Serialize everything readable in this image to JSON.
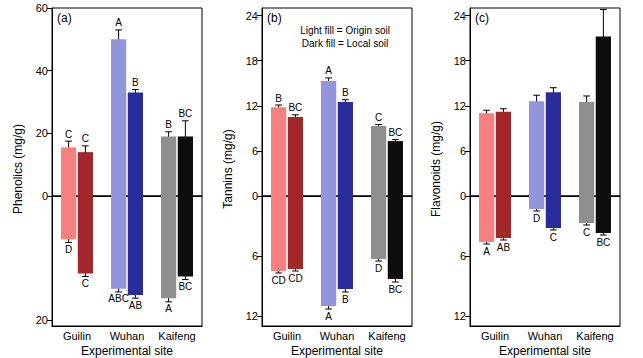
{
  "chart_data": [
    {
      "type": "bar",
      "title": "(a)",
      "ylabel": "Phenolics (mg/g)",
      "xlabel": "Experimental site",
      "categories": [
        "Guilin",
        "Wuhan",
        "Kaifeng"
      ],
      "grid": false,
      "ylim": [
        0,
        60
      ],
      "yticks": [
        0,
        20,
        40,
        60
      ],
      "y2lim": [
        0,
        21
      ],
      "y2ticks": [
        20
      ],
      "series": [
        {
          "colors": [
            "#f4817f",
            "#9395dc",
            "#8f8f8f"
          ],
          "values": [
            15.5,
            50,
            19
          ],
          "errors": [
            2,
            3,
            1.5
          ],
          "letters": [
            "C",
            "A",
            "B"
          ]
        },
        {
          "colors": [
            "#a3262a",
            "#2a2c9a",
            "#0d0d0d"
          ],
          "values": [
            14,
            33,
            19
          ],
          "errors": [
            2,
            1,
            5
          ],
          "letters": [
            "C",
            "B",
            "BC"
          ]
        },
        {
          "axis": "y2",
          "colors": [
            "#f4817f",
            "#9395dc",
            "#8f8f8f"
          ],
          "values": [
            7,
            15,
            16.5
          ],
          "errors": [
            0.5,
            0.5,
            0.6
          ],
          "letters": [
            "D",
            "ABC",
            "A"
          ]
        },
        {
          "axis": "y2",
          "colors": [
            "#a3262a",
            "#2a2c9a",
            "#0d0d0d"
          ],
          "values": [
            12.5,
            16,
            13
          ],
          "errors": [
            0.5,
            0.5,
            0.5
          ],
          "letters": [
            "C",
            "AB",
            "BC"
          ]
        }
      ]
    },
    {
      "type": "bar",
      "title": "(b)",
      "ylabel": "Tannins (mg/g)",
      "xlabel": "Experimental site",
      "annotations": [
        "Light fill = Origin soil",
        "Dark fill = Local soil"
      ],
      "categories": [
        "Guilin",
        "Wuhan",
        "Kaifeng"
      ],
      "grid": false,
      "ylim": [
        0,
        25
      ],
      "yticks": [
        0,
        6,
        12,
        18,
        24
      ],
      "y2lim": [
        0,
        13
      ],
      "y2ticks": [
        6,
        12
      ],
      "series": [
        {
          "colors": [
            "#f4817f",
            "#9395dc",
            "#8f8f8f"
          ],
          "values": [
            11.8,
            15.3,
            9.3
          ],
          "errors": [
            0.3,
            0.4,
            0.2
          ],
          "letters": [
            "B",
            "A",
            "C"
          ]
        },
        {
          "colors": [
            "#a3262a",
            "#2a2c9a",
            "#0d0d0d"
          ],
          "values": [
            10.5,
            12.5,
            7.3
          ],
          "errors": [
            0.3,
            0.3,
            0.2
          ],
          "letters": [
            "BC",
            "B",
            "BC"
          ]
        },
        {
          "axis": "y2",
          "colors": [
            "#f4817f",
            "#9395dc",
            "#8f8f8f"
          ],
          "values": [
            7.5,
            11,
            6.3
          ],
          "errors": [
            0.2,
            0.3,
            0.2
          ],
          "letters": [
            "CD",
            "A",
            "D"
          ]
        },
        {
          "axis": "y2",
          "colors": [
            "#a3262a",
            "#2a2c9a",
            "#0d0d0d"
          ],
          "values": [
            7.3,
            9.3,
            8.3
          ],
          "errors": [
            0.2,
            0.3,
            0.3
          ],
          "letters": [
            "CD",
            "B",
            "BC"
          ]
        }
      ]
    },
    {
      "type": "bar",
      "title": "(c)",
      "ylabel": "Flavonoids (mg/g)",
      "xlabel": "Experimental site",
      "categories": [
        "Guilin",
        "Wuhan",
        "Kaifeng"
      ],
      "grid": false,
      "ylim": [
        0,
        25
      ],
      "yticks": [
        0,
        6,
        12,
        18,
        24
      ],
      "y2lim": [
        0,
        13
      ],
      "y2ticks": [
        6,
        12
      ],
      "series": [
        {
          "colors": [
            "#f4817f",
            "#9395dc",
            "#8f8f8f"
          ],
          "values": [
            11,
            12.6,
            12.5
          ],
          "errors": [
            0.4,
            0.8,
            0.8
          ]
        },
        {
          "colors": [
            "#a3262a",
            "#2a2c9a",
            "#0d0d0d"
          ],
          "values": [
            11.2,
            13.8,
            21.2
          ],
          "errors": [
            0.4,
            0.6,
            3.6
          ]
        },
        {
          "axis": "y2",
          "colors": [
            "#f4817f",
            "#9395dc",
            "#8f8f8f"
          ],
          "values": [
            4.6,
            1.3,
            2.7
          ],
          "errors": [
            0.2,
            0.2,
            0.2
          ],
          "letters": [
            "A",
            "D",
            "C"
          ]
        },
        {
          "axis": "y2",
          "colors": [
            "#a3262a",
            "#2a2c9a",
            "#0d0d0d"
          ],
          "values": [
            4.2,
            3.2,
            3.7
          ],
          "errors": [
            0.2,
            0.2,
            0.2
          ],
          "letters": [
            "AB",
            "C",
            "BC"
          ]
        }
      ]
    }
  ]
}
